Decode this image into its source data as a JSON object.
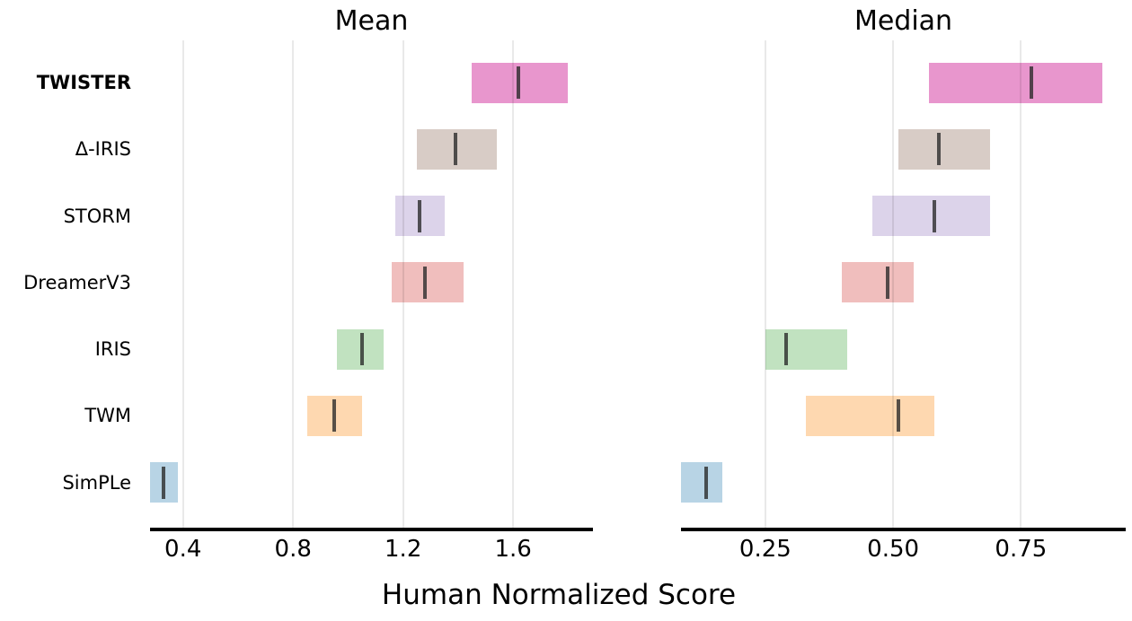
{
  "figure": {
    "xlabel": "Human Normalized Score",
    "background_color": "#ffffff",
    "grid_color": "rgba(0,0,0,0.085)",
    "axis_line_color": "#000000",
    "interval_marker_color": "rgba(40,40,40,0.78)"
  },
  "methods": [
    {
      "label": "TWISTER",
      "bold": true,
      "color": "#e896cd"
    },
    {
      "label": "Δ-IRIS",
      "bold": false,
      "color": "#d8ccc6"
    },
    {
      "label": "STORM",
      "bold": false,
      "color": "#dcd3ea"
    },
    {
      "label": "DreamerV3",
      "bold": false,
      "color": "#f0bebd"
    },
    {
      "label": "IRIS",
      "bold": false,
      "color": "#c1e2c0"
    },
    {
      "label": "TWM",
      "bold": false,
      "color": "#fed8b0"
    },
    {
      "label": "SimPLe",
      "bold": false,
      "color": "#b8d4e5"
    }
  ],
  "chart_data": [
    {
      "type": "interval",
      "title": "Mean",
      "categories": [
        "TWISTER",
        "Δ-IRIS",
        "STORM",
        "DreamerV3",
        "IRIS",
        "TWM",
        "SimPLe"
      ],
      "values": [
        1.62,
        1.39,
        1.26,
        1.28,
        1.05,
        0.95,
        0.33
      ],
      "ci_low": [
        1.45,
        1.25,
        1.17,
        1.16,
        0.96,
        0.85,
        0.28
      ],
      "ci_high": [
        1.8,
        1.54,
        1.35,
        1.42,
        1.13,
        1.05,
        0.38
      ],
      "xticks": [
        0.4,
        0.8,
        1.2,
        1.6
      ],
      "xtick_labels": [
        "0.4",
        "0.8",
        "1.2",
        "1.6"
      ],
      "xlim": [
        0.28,
        1.89
      ],
      "grid": "vertical",
      "legend": "none"
    },
    {
      "type": "interval",
      "title": "Median",
      "categories": [
        "TWISTER",
        "Δ-IRIS",
        "STORM",
        "DreamerV3",
        "IRIS",
        "TWM",
        "SimPLe"
      ],
      "values": [
        0.77,
        0.59,
        0.58,
        0.49,
        0.29,
        0.51,
        0.135
      ],
      "ci_low": [
        0.57,
        0.51,
        0.46,
        0.4,
        0.25,
        0.33,
        0.085
      ],
      "ci_high": [
        0.91,
        0.69,
        0.69,
        0.54,
        0.41,
        0.58,
        0.165
      ],
      "xticks": [
        0.25,
        0.5,
        0.75
      ],
      "xtick_labels": [
        "0.25",
        "0.50",
        "0.75"
      ],
      "xlim": [
        0.085,
        0.955
      ],
      "grid": "vertical",
      "legend": "none"
    }
  ]
}
